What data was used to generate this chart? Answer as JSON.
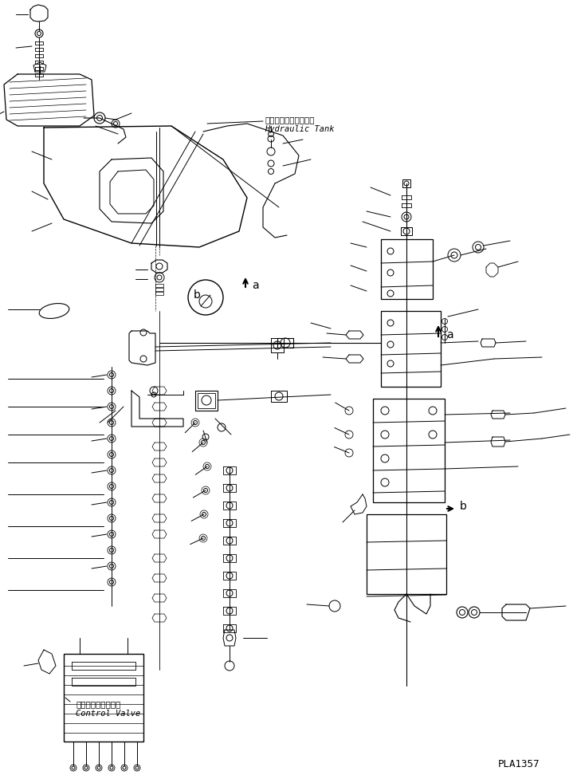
{
  "background_color": "#ffffff",
  "line_color": "#000000",
  "text_color": "#000000",
  "page_id": "PLA1357",
  "hydraulic_tank_jp": "ハイドロリックタンク",
  "hydraulic_tank_en": "Hydraulic Tank",
  "control_valve_jp": "コントロールバルブ",
  "control_valve_en": "Control Valve",
  "figsize": [
    7.19,
    9.77
  ],
  "dpi": 100
}
